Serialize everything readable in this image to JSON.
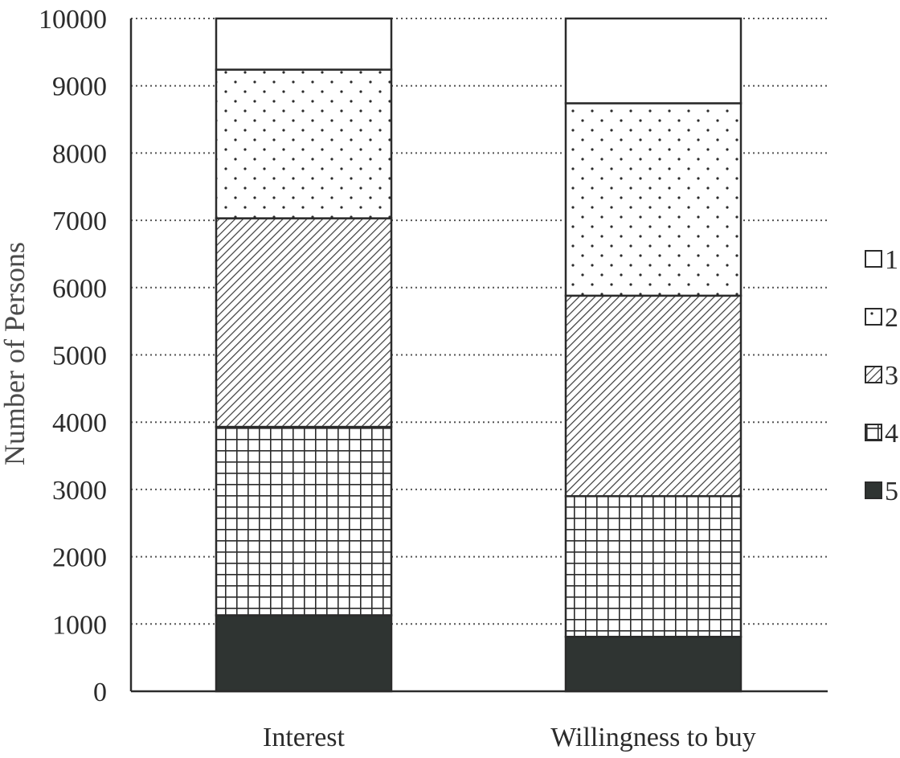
{
  "chart_data": {
    "type": "bar",
    "stacked": true,
    "categories": [
      "Interest",
      "Willingness to buy"
    ],
    "series": [
      {
        "name": "5",
        "pattern": "solid",
        "color": "#2f3432",
        "values": [
          1130,
          810
        ]
      },
      {
        "name": "4",
        "pattern": "grid",
        "color": "#2b2b2b",
        "values": [
          2800,
          2090
        ]
      },
      {
        "name": "3",
        "pattern": "hatch",
        "color": "#2b2b2b",
        "values": [
          3100,
          2980
        ]
      },
      {
        "name": "2",
        "pattern": "dots",
        "color": "#2b2b2b",
        "values": [
          2210,
          2860
        ]
      },
      {
        "name": "1",
        "pattern": "none",
        "color": "#ffffff",
        "values": [
          760,
          1260
        ]
      }
    ],
    "ylabel": "Number of Persons",
    "xlabel": "",
    "ylim": [
      0,
      10000
    ],
    "yticks": [
      "0",
      "1000",
      "2000",
      "3000",
      "4000",
      "5000",
      "6000",
      "7000",
      "8000",
      "9000",
      "10000"
    ],
    "grid": true,
    "legend_position": "right",
    "legend_order": [
      "1",
      "2",
      "3",
      "4",
      "5"
    ]
  }
}
